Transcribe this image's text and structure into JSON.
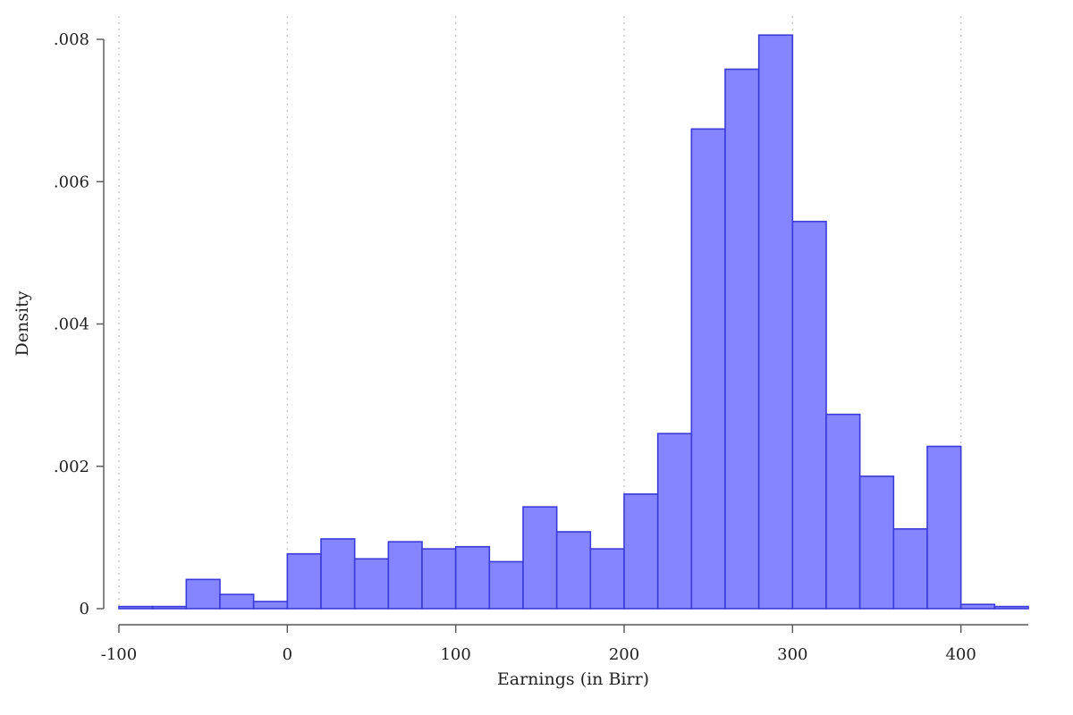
{
  "chart_data": {
    "type": "bar",
    "title": "",
    "xlabel": "Earnings (in Birr)",
    "ylabel": "Density",
    "xlim": [
      -100,
      440
    ],
    "ylim": [
      0,
      0.008
    ],
    "x_ticks": [
      -100,
      0,
      100,
      200,
      300,
      400
    ],
    "x_tick_labels": [
      "-100",
      "0",
      "100",
      "200",
      "300",
      "400"
    ],
    "y_ticks": [
      0,
      0.002,
      0.004,
      0.006,
      0.008
    ],
    "y_tick_labels": [
      "0",
      ".002",
      ".004",
      ".006",
      ".008"
    ],
    "grid": "vertical-dotted",
    "bin_width": 20,
    "bins": [
      {
        "x0": -100,
        "x1": -80,
        "value": 3e-05
      },
      {
        "x0": -80,
        "x1": -60,
        "value": 3e-05
      },
      {
        "x0": -60,
        "x1": -40,
        "value": 0.00041
      },
      {
        "x0": -40,
        "x1": -20,
        "value": 0.0002
      },
      {
        "x0": -20,
        "x1": 0,
        "value": 0.0001
      },
      {
        "x0": 0,
        "x1": 20,
        "value": 0.00077
      },
      {
        "x0": 20,
        "x1": 40,
        "value": 0.00098
      },
      {
        "x0": 40,
        "x1": 60,
        "value": 0.0007
      },
      {
        "x0": 60,
        "x1": 80,
        "value": 0.00094
      },
      {
        "x0": 80,
        "x1": 100,
        "value": 0.00084
      },
      {
        "x0": 100,
        "x1": 120,
        "value": 0.00087
      },
      {
        "x0": 120,
        "x1": 140,
        "value": 0.00066
      },
      {
        "x0": 140,
        "x1": 160,
        "value": 0.00143
      },
      {
        "x0": 160,
        "x1": 180,
        "value": 0.00108
      },
      {
        "x0": 180,
        "x1": 200,
        "value": 0.00084
      },
      {
        "x0": 200,
        "x1": 220,
        "value": 0.00161
      },
      {
        "x0": 220,
        "x1": 240,
        "value": 0.00246
      },
      {
        "x0": 240,
        "x1": 260,
        "value": 0.00674
      },
      {
        "x0": 260,
        "x1": 280,
        "value": 0.00758
      },
      {
        "x0": 280,
        "x1": 300,
        "value": 0.00806
      },
      {
        "x0": 300,
        "x1": 320,
        "value": 0.00544
      },
      {
        "x0": 320,
        "x1": 340,
        "value": 0.00273
      },
      {
        "x0": 340,
        "x1": 360,
        "value": 0.00186
      },
      {
        "x0": 360,
        "x1": 380,
        "value": 0.00112
      },
      {
        "x0": 380,
        "x1": 400,
        "value": 0.00228
      },
      {
        "x0": 400,
        "x1": 420,
        "value": 6e-05
      },
      {
        "x0": 420,
        "x1": 440,
        "value": 3e-05
      }
    ],
    "colors": {
      "bar_fill": "#8585ff",
      "bar_edge": "#3b3bd9"
    }
  }
}
